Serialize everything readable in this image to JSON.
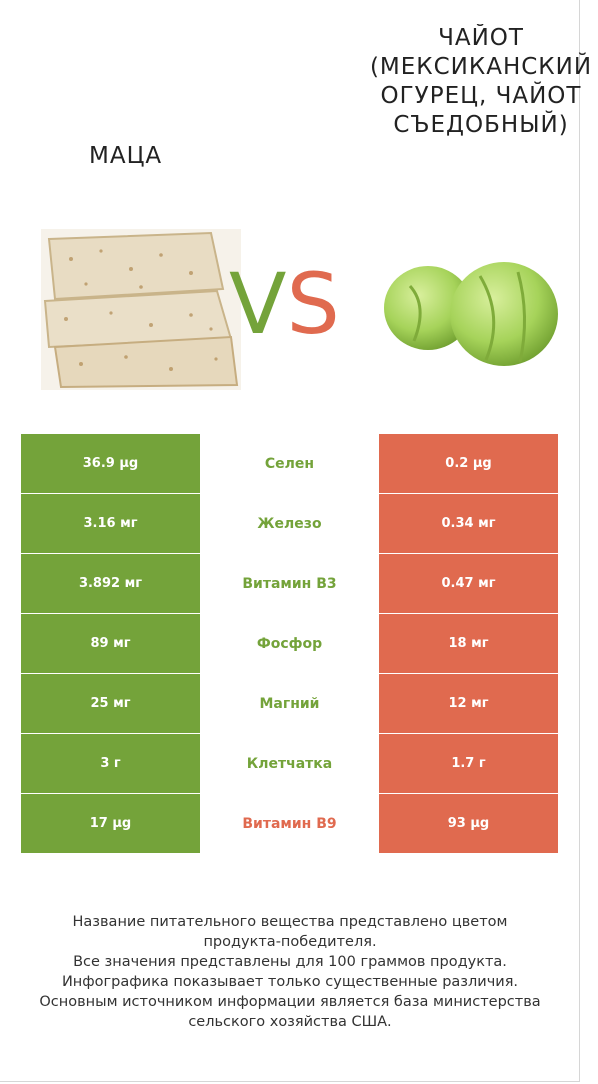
{
  "left_product": {
    "title": "МАЦА",
    "color": "#74a33a"
  },
  "right_product": {
    "title": "ЧАЙОТ (МЕКСИКАНСКИЙ ОГУРЕЦ, ЧАЙОТ СЪЕДОБНЫЙ)",
    "color": "#e06a4f"
  },
  "vs": {
    "v": "V",
    "s": "S"
  },
  "rows": [
    {
      "left": "36.9 µg",
      "label": "Селен",
      "right": "0.2 µg",
      "winner": "left"
    },
    {
      "left": "3.16 мг",
      "label": "Железо",
      "right": "0.34 мг",
      "winner": "left"
    },
    {
      "left": "3.892 мг",
      "label": "Витамин B3",
      "right": "0.47 мг",
      "winner": "left"
    },
    {
      "left": "89 мг",
      "label": "Фосфор",
      "right": "18 мг",
      "winner": "left"
    },
    {
      "left": "25 мг",
      "label": "Магний",
      "right": "12 мг",
      "winner": "left"
    },
    {
      "left": "3 г",
      "label": "Клетчатка",
      "right": "1.7 г",
      "winner": "left"
    },
    {
      "left": "17 µg",
      "label": "Витамин B9",
      "right": "93 µg",
      "winner": "right"
    }
  ],
  "notes": [
    "Название питательного вещества представлено цветом",
    "продукта-победителя.",
    "Все значения представлены для 100 граммов продукта.",
    "Инфографика показывает только существенные различия.",
    "Основным источником информации является база министерства",
    "сельского хозяйства США."
  ]
}
